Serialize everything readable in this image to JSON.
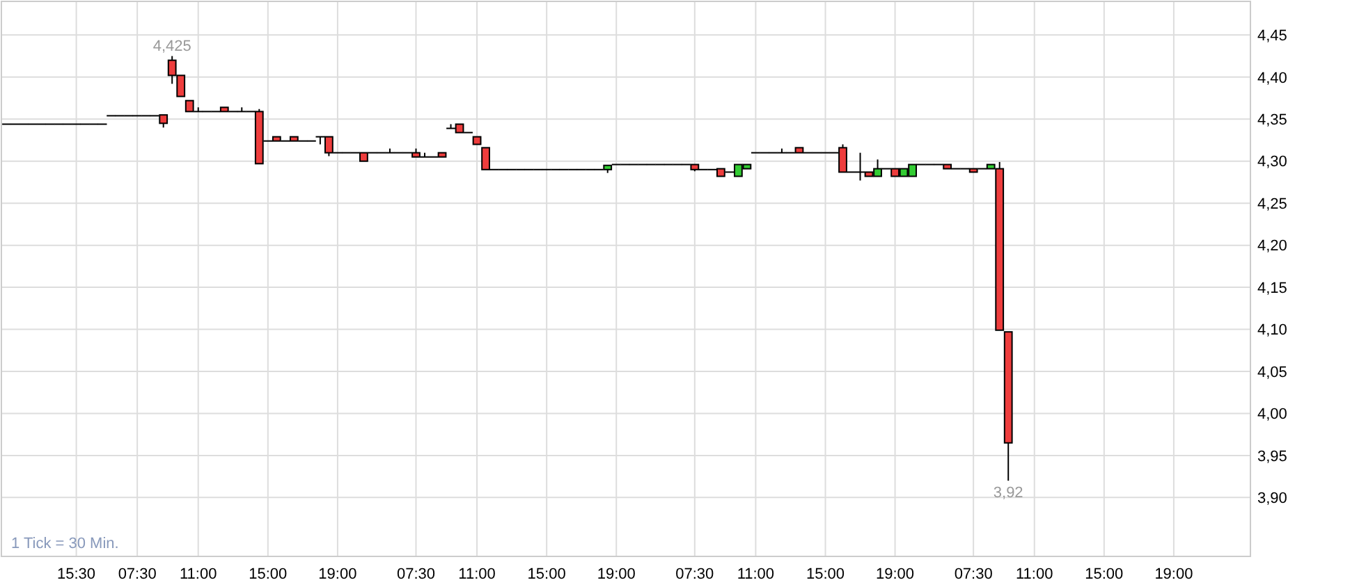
{
  "chart_data": {
    "type": "candlestick",
    "categories": [
      null,
      null,
      null,
      null,
      null,
      null,
      null,
      null,
      "15:30",
      null,
      null,
      null,
      null,
      null,
      null,
      "07:30",
      null,
      null,
      null,
      null,
      null,
      null,
      "11:00",
      null,
      null,
      null,
      null,
      null,
      null,
      null,
      "15:00",
      null,
      null,
      null,
      null,
      null,
      null,
      null,
      "19:00",
      null,
      null,
      null,
      null,
      null,
      null,
      null,
      null,
      "07:30",
      null,
      null,
      null,
      null,
      null,
      null,
      "11:00",
      null,
      null,
      null,
      null,
      null,
      null,
      null,
      "15:00",
      null,
      null,
      null,
      null,
      null,
      null,
      null,
      "19:00",
      null,
      null,
      null,
      null,
      null,
      null,
      null,
      null,
      "07:30",
      null,
      null,
      null,
      null,
      null,
      null,
      "11:00",
      null,
      null,
      null,
      null,
      null,
      null,
      null,
      "15:00",
      null,
      null,
      null,
      null,
      null,
      null,
      null,
      "19:00",
      null,
      null,
      null,
      null,
      null,
      null,
      null,
      null,
      "07:30",
      null,
      null,
      null,
      null,
      null,
      null,
      "11:00",
      null,
      null,
      null,
      null,
      null,
      null,
      null,
      "15:00",
      null,
      null,
      null,
      null,
      null,
      null,
      null,
      "19:00",
      null,
      null,
      null,
      null,
      null,
      null,
      null,
      null
    ],
    "ohlc": [
      [
        4.344,
        4.344,
        4.344,
        4.344
      ],
      [
        4.344,
        4.344,
        4.344,
        4.344
      ],
      [
        4.344,
        4.344,
        4.344,
        4.344
      ],
      [
        4.344,
        4.344,
        4.344,
        4.344
      ],
      [
        4.344,
        4.344,
        4.344,
        4.344
      ],
      [
        4.344,
        4.344,
        4.344,
        4.344
      ],
      [
        4.344,
        4.344,
        4.344,
        4.344
      ],
      [
        4.344,
        4.344,
        4.344,
        4.344
      ],
      [
        4.344,
        4.344,
        4.344,
        4.344
      ],
      [
        4.344,
        4.344,
        4.344,
        4.344
      ],
      [
        4.344,
        4.344,
        4.344,
        4.344
      ],
      [
        4.344,
        4.344,
        4.344,
        4.344
      ],
      [
        4.354,
        4.354,
        4.354,
        4.354
      ],
      [
        4.354,
        4.354,
        4.354,
        4.354
      ],
      [
        4.354,
        4.354,
        4.354,
        4.354
      ],
      [
        4.354,
        4.354,
        4.354,
        4.354
      ],
      [
        4.354,
        4.354,
        4.354,
        4.354
      ],
      [
        4.354,
        4.354,
        4.354,
        4.354
      ],
      [
        4.355,
        4.355,
        4.34,
        4.345
      ],
      [
        4.42,
        4.425,
        4.392,
        4.402
      ],
      [
        4.402,
        4.402,
        4.377,
        4.377
      ],
      [
        4.372,
        4.372,
        4.359,
        4.359
      ],
      [
        4.359,
        4.364,
        4.359,
        4.359
      ],
      [
        4.359,
        4.359,
        4.359,
        4.359
      ],
      [
        4.359,
        4.359,
        4.359,
        4.359
      ],
      [
        4.364,
        4.364,
        4.359,
        4.359
      ],
      [
        4.359,
        4.359,
        4.359,
        4.359
      ],
      [
        4.359,
        4.364,
        4.359,
        4.359
      ],
      [
        4.359,
        4.359,
        4.359,
        4.359
      ],
      [
        4.359,
        4.362,
        4.297,
        4.297
      ],
      [
        4.324,
        4.324,
        4.324,
        4.324
      ],
      [
        4.329,
        4.329,
        4.324,
        4.324
      ],
      [
        4.324,
        4.324,
        4.324,
        4.324
      ],
      [
        4.329,
        4.329,
        4.324,
        4.324
      ],
      [
        4.324,
        4.324,
        4.324,
        4.324
      ],
      [
        4.324,
        4.324,
        4.324,
        4.324
      ],
      [
        4.329,
        4.329,
        4.32,
        4.329
      ],
      [
        4.329,
        4.329,
        4.306,
        4.31
      ],
      [
        4.31,
        4.31,
        4.31,
        4.31
      ],
      [
        4.31,
        4.31,
        4.31,
        4.31
      ],
      [
        4.31,
        4.31,
        4.31,
        4.31
      ],
      [
        4.31,
        4.31,
        4.3,
        4.3
      ],
      [
        4.31,
        4.31,
        4.31,
        4.31
      ],
      [
        4.31,
        4.31,
        4.31,
        4.31
      ],
      [
        4.31,
        4.315,
        4.31,
        4.31
      ],
      [
        4.31,
        4.31,
        4.31,
        4.31
      ],
      [
        4.31,
        4.31,
        4.31,
        4.31
      ],
      [
        4.31,
        4.315,
        4.305,
        4.305
      ],
      [
        4.305,
        4.31,
        4.305,
        4.305
      ],
      [
        4.305,
        4.305,
        4.305,
        4.305
      ],
      [
        4.31,
        4.31,
        4.305,
        4.305
      ],
      [
        4.339,
        4.344,
        4.339,
        4.339
      ],
      [
        4.344,
        4.344,
        4.334,
        4.334
      ],
      [
        4.334,
        4.334,
        4.334,
        4.334
      ],
      [
        4.329,
        4.329,
        4.32,
        4.32
      ],
      [
        4.316,
        4.316,
        4.29,
        4.29
      ],
      [
        4.29,
        4.29,
        4.29,
        4.29
      ],
      [
        4.29,
        4.29,
        4.29,
        4.29
      ],
      [
        4.29,
        4.29,
        4.29,
        4.29
      ],
      [
        4.29,
        4.29,
        4.29,
        4.29
      ],
      [
        4.29,
        4.29,
        4.29,
        4.29
      ],
      [
        4.29,
        4.29,
        4.29,
        4.29
      ],
      [
        4.29,
        4.29,
        4.29,
        4.29
      ],
      [
        4.29,
        4.29,
        4.29,
        4.29
      ],
      [
        4.29,
        4.29,
        4.29,
        4.29
      ],
      [
        4.29,
        4.29,
        4.29,
        4.29
      ],
      [
        4.29,
        4.29,
        4.29,
        4.29
      ],
      [
        4.29,
        4.29,
        4.29,
        4.29
      ],
      [
        4.29,
        4.29,
        4.29,
        4.29
      ],
      [
        4.29,
        4.295,
        4.286,
        4.295
      ],
      [
        4.296,
        4.296,
        4.296,
        4.296
      ],
      [
        4.296,
        4.296,
        4.296,
        4.296
      ],
      [
        4.296,
        4.296,
        4.296,
        4.296
      ],
      [
        4.296,
        4.296,
        4.296,
        4.296
      ],
      [
        4.296,
        4.296,
        4.296,
        4.296
      ],
      [
        4.296,
        4.296,
        4.296,
        4.296
      ],
      [
        4.296,
        4.296,
        4.296,
        4.296
      ],
      [
        4.296,
        4.296,
        4.296,
        4.296
      ],
      [
        4.296,
        4.296,
        4.296,
        4.296
      ],
      [
        4.296,
        4.296,
        4.288,
        4.29
      ],
      [
        4.29,
        4.29,
        4.29,
        4.29
      ],
      [
        4.29,
        4.29,
        4.29,
        4.29
      ],
      [
        4.291,
        4.291,
        4.282,
        4.282
      ],
      [
        4.287,
        4.287,
        4.287,
        4.287
      ],
      [
        4.282,
        4.296,
        4.282,
        4.296
      ],
      [
        4.291,
        4.296,
        4.291,
        4.296
      ],
      [
        4.31,
        4.31,
        4.31,
        4.31
      ],
      [
        4.31,
        4.31,
        4.31,
        4.31
      ],
      [
        4.31,
        4.31,
        4.31,
        4.31
      ],
      [
        4.31,
        4.315,
        4.31,
        4.31
      ],
      [
        4.31,
        4.31,
        4.31,
        4.31
      ],
      [
        4.316,
        4.316,
        4.31,
        4.31
      ],
      [
        4.31,
        4.31,
        4.31,
        4.31
      ],
      [
        4.31,
        4.31,
        4.31,
        4.31
      ],
      [
        4.31,
        4.31,
        4.31,
        4.31
      ],
      [
        4.31,
        4.31,
        4.31,
        4.31
      ],
      [
        4.316,
        4.32,
        4.287,
        4.287
      ],
      [
        4.287,
        4.287,
        4.287,
        4.287
      ],
      [
        4.287,
        4.31,
        4.277,
        4.287
      ],
      [
        4.287,
        4.287,
        4.282,
        4.282
      ],
      [
        4.282,
        4.302,
        4.282,
        4.291
      ],
      [
        4.291,
        4.291,
        4.291,
        4.291
      ],
      [
        4.291,
        4.291,
        4.282,
        4.282
      ],
      [
        4.282,
        4.291,
        4.282,
        4.291
      ],
      [
        4.282,
        4.296,
        4.282,
        4.296
      ],
      [
        4.296,
        4.296,
        4.296,
        4.296
      ],
      [
        4.296,
        4.296,
        4.296,
        4.296
      ],
      [
        4.296,
        4.296,
        4.296,
        4.296
      ],
      [
        4.296,
        4.296,
        4.291,
        4.291
      ],
      [
        4.291,
        4.291,
        4.291,
        4.291
      ],
      [
        4.291,
        4.291,
        4.291,
        4.291
      ],
      [
        4.291,
        4.291,
        4.287,
        4.287
      ],
      [
        4.291,
        4.291,
        4.291,
        4.291
      ],
      [
        4.291,
        4.296,
        4.291,
        4.296
      ],
      [
        4.291,
        4.299,
        4.099,
        4.099
      ],
      [
        4.097,
        4.097,
        3.92,
        3.965
      ],
      null,
      null,
      null,
      null,
      null,
      null,
      null,
      null,
      null,
      null,
      null,
      null,
      null,
      null,
      null,
      null,
      null,
      null,
      null,
      null,
      null,
      null,
      null,
      null,
      null,
      null,
      null
    ],
    "ylim": [
      3.83,
      4.49
    ],
    "yticks": [
      {
        "value": 3.9,
        "label": "3,90"
      },
      {
        "value": 3.95,
        "label": "3,95"
      },
      {
        "value": 4.0,
        "label": "4,00"
      },
      {
        "value": 4.05,
        "label": "4,05"
      },
      {
        "value": 4.1,
        "label": "4,10"
      },
      {
        "value": 4.15,
        "label": "4,15"
      },
      {
        "value": 4.2,
        "label": "4,20"
      },
      {
        "value": 4.25,
        "label": "4,25"
      },
      {
        "value": 4.3,
        "label": "4,30"
      },
      {
        "value": 4.35,
        "label": "4,35"
      },
      {
        "value": 4.4,
        "label": "4,40"
      },
      {
        "value": 4.45,
        "label": "4,45"
      }
    ],
    "grid": true,
    "annotations": [
      {
        "text": "4,425",
        "y": 4.425
      },
      {
        "text": "3,92",
        "y": 3.92
      },
      "1 Tick = 30 Min."
    ]
  }
}
